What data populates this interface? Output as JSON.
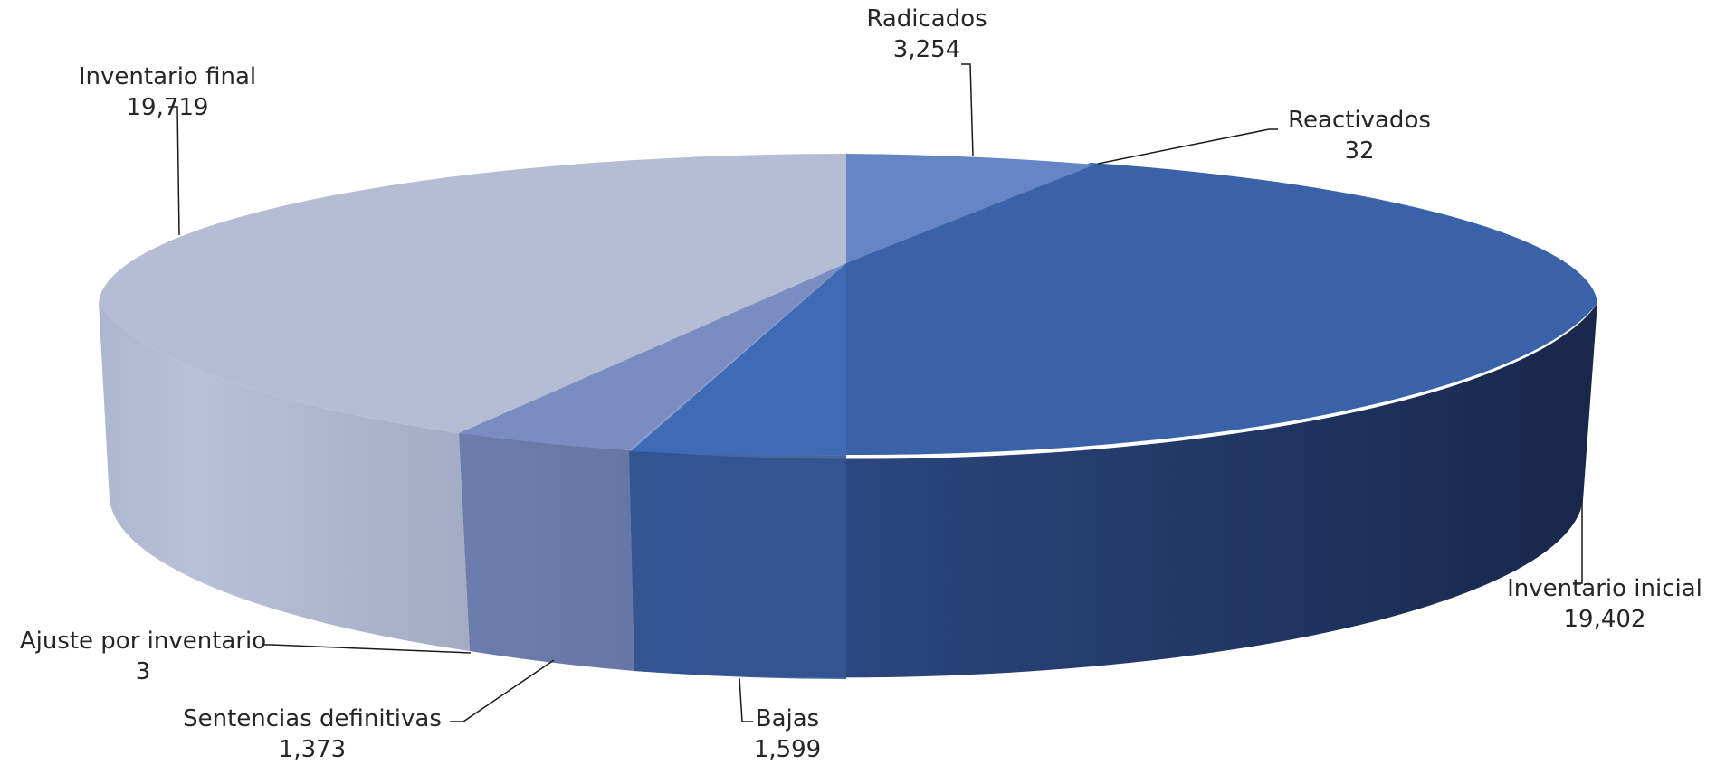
{
  "chart_data": {
    "type": "pie",
    "style": "3d",
    "slices": [
      {
        "label": "Radicados",
        "value_text": "3,254",
        "value": 3254,
        "color": "#6585c4"
      },
      {
        "label": "Reactivados",
        "value_text": "32",
        "value": 32,
        "color": "#3c62a6"
      },
      {
        "label": "Inventario inicial",
        "value_text": "19,402",
        "value": 19402,
        "color": "#3a62a8"
      },
      {
        "label": "Bajas",
        "value_text": "1,599",
        "value": 1599,
        "color": "#3e6ab6"
      },
      {
        "label": "Sentencias definitivas",
        "value_text": "1,373",
        "value": 1373,
        "color": "#7a8cc1"
      },
      {
        "label": "Ajuste por inventario",
        "value_text": "3",
        "value": 3,
        "color": "#8896c6"
      },
      {
        "label": "Inventario final",
        "value_text": "19,719",
        "value": 19719,
        "color": "#b5bdd4"
      }
    ]
  }
}
